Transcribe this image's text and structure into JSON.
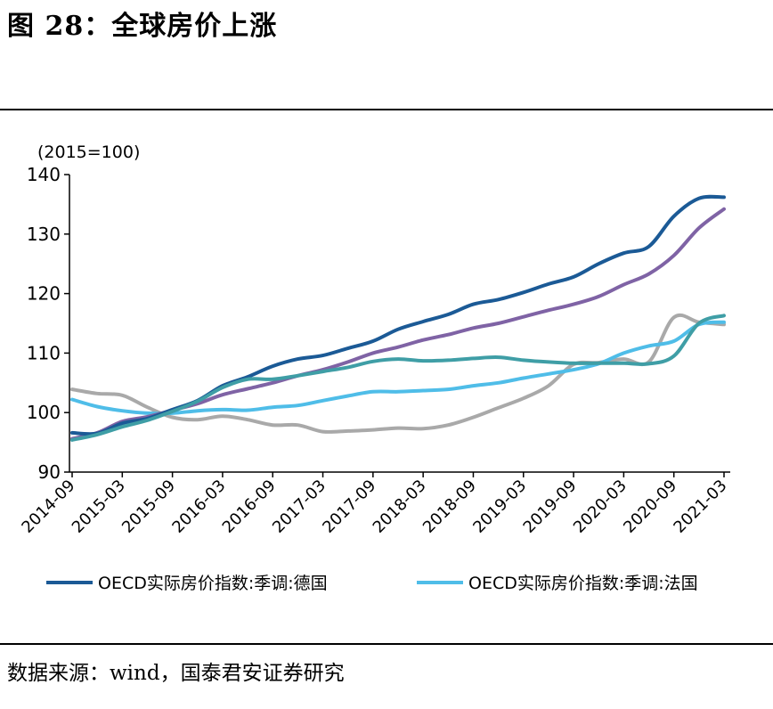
{
  "figure": {
    "title": "图 28：全球房价上涨",
    "source": "数据来源：wind，国泰君安证券研究"
  },
  "chart_data": {
    "type": "line",
    "title": "",
    "unit_label": "(2015=100)",
    "xlabel": "",
    "ylabel": "",
    "ylim": [
      90,
      140
    ],
    "yticks": [
      90,
      100,
      110,
      120,
      130,
      140
    ],
    "x_tick_labels": [
      "2014-09",
      "2015-03",
      "2015-09",
      "2016-03",
      "2016-09",
      "2017-03",
      "2017-09",
      "2018-03",
      "2018-09",
      "2019-03",
      "2019-09",
      "2020-03",
      "2020-09",
      "2021-03"
    ],
    "grid": false,
    "legend_position": "bottom",
    "x": [
      "2014-09",
      "2014-12",
      "2015-03",
      "2015-06",
      "2015-09",
      "2015-12",
      "2016-03",
      "2016-06",
      "2016-09",
      "2016-12",
      "2017-03",
      "2017-06",
      "2017-09",
      "2017-12",
      "2018-03",
      "2018-06",
      "2018-09",
      "2018-12",
      "2019-03",
      "2019-06",
      "2019-09",
      "2019-12",
      "2020-03",
      "2020-06",
      "2020-09",
      "2020-12",
      "2021-03"
    ],
    "series": [
      {
        "name": "OECD实际房价指数:季调:德国",
        "legend": true,
        "color": "#1b5a96",
        "values": [
          96.6,
          96.5,
          98.2,
          99.0,
          100.5,
          102.0,
          104.5,
          106.0,
          107.8,
          109.0,
          109.6,
          110.8,
          112.0,
          114.0,
          115.3,
          116.5,
          118.2,
          119.0,
          120.2,
          121.6,
          122.8,
          125.0,
          126.8,
          127.9,
          133.0,
          136.0,
          136.2
        ]
      },
      {
        "name": "",
        "legend": false,
        "color": "#7f63a5",
        "values": [
          95.6,
          96.6,
          98.5,
          99.3,
          100.4,
          101.5,
          103.0,
          104.0,
          105.0,
          106.2,
          107.2,
          108.5,
          110.0,
          111.0,
          112.2,
          113.1,
          114.2,
          115.0,
          116.1,
          117.2,
          118.2,
          119.5,
          121.5,
          123.3,
          126.4,
          131.0,
          134.2
        ]
      },
      {
        "name": "OECD实际房价指数:季调:法国",
        "legend": true,
        "color": "#4fbde8",
        "values": [
          102.2,
          101.0,
          100.3,
          99.9,
          99.9,
          100.3,
          100.5,
          100.4,
          100.9,
          101.2,
          102.0,
          102.8,
          103.5,
          103.5,
          103.7,
          103.9,
          104.5,
          105.0,
          105.8,
          106.5,
          107.2,
          108.2,
          110.0,
          111.2,
          112.0,
          114.8,
          115.2
        ]
      },
      {
        "name": "",
        "legend": false,
        "color": "#a9a9a9",
        "values": [
          103.9,
          103.2,
          102.9,
          100.9,
          99.2,
          98.8,
          99.4,
          98.8,
          97.9,
          97.9,
          96.8,
          96.9,
          97.1,
          97.4,
          97.3,
          97.9,
          99.2,
          100.8,
          102.4,
          104.5,
          108.1,
          108.4,
          109.0,
          108.5,
          116.0,
          115.2,
          114.8
        ]
      },
      {
        "name": "",
        "legend": false,
        "color": "#3f9ea6",
        "values": [
          95.4,
          96.3,
          97.6,
          98.7,
          100.2,
          101.9,
          104.2,
          105.6,
          105.6,
          106.2,
          106.9,
          107.6,
          108.6,
          109.0,
          108.7,
          108.8,
          109.1,
          109.3,
          108.8,
          108.5,
          108.3,
          108.3,
          108.3,
          108.2,
          109.5,
          115.0,
          116.3
        ]
      }
    ]
  }
}
